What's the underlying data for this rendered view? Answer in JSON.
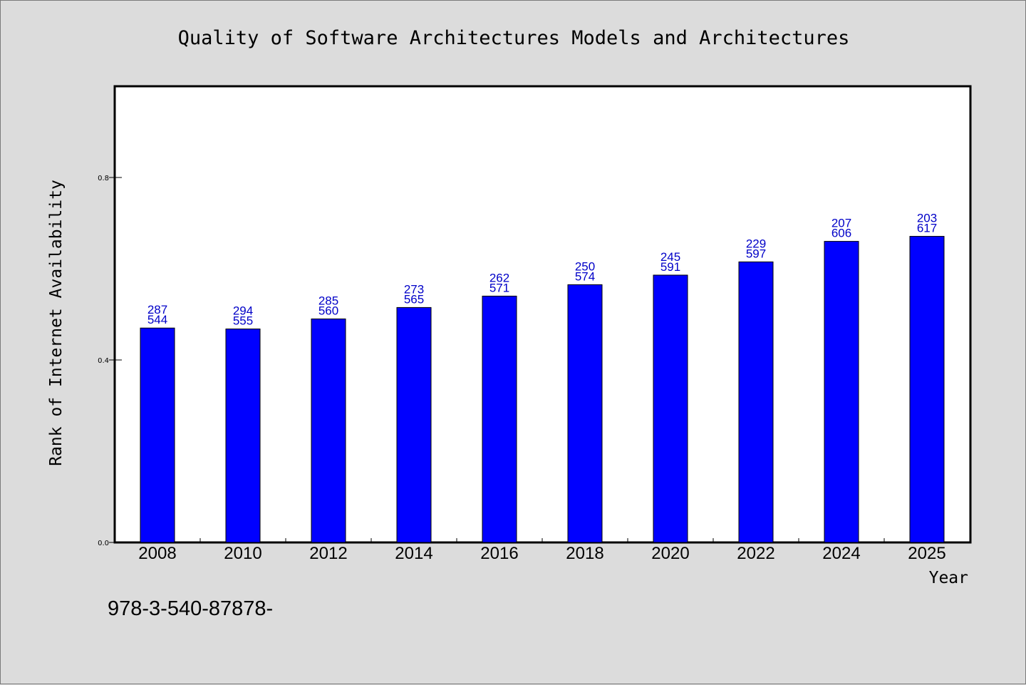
{
  "chart_data": {
    "type": "bar",
    "title": "Quality of Software Architectures Models and Architectures",
    "xlabel": "Year",
    "ylabel": "Rank of Internet Availability",
    "categories": [
      "2008",
      "2010",
      "2012",
      "2014",
      "2016",
      "2018",
      "2020",
      "2022",
      "2024",
      "2025"
    ],
    "values": [
      0.47,
      0.468,
      0.49,
      0.515,
      0.54,
      0.565,
      0.586,
      0.615,
      0.66,
      0.671
    ],
    "labels_top": [
      "287",
      "294",
      "285",
      "273",
      "262",
      "250",
      "245",
      "229",
      "207",
      "203"
    ],
    "labels_bottom": [
      "544",
      "555",
      "560",
      "565",
      "571",
      "574",
      "591",
      "597",
      "606",
      "617"
    ],
    "ylim": [
      0,
      1.0
    ],
    "yticks": [
      0.0,
      0.4,
      0.8
    ],
    "ytick_labels": [
      "0.0",
      "0.4",
      "0.8"
    ],
    "grid": false,
    "colors": {
      "bar": "#0000ff",
      "label": "#0000c8",
      "axis": "#000000"
    }
  },
  "footnote": "978-3-540-87878-"
}
